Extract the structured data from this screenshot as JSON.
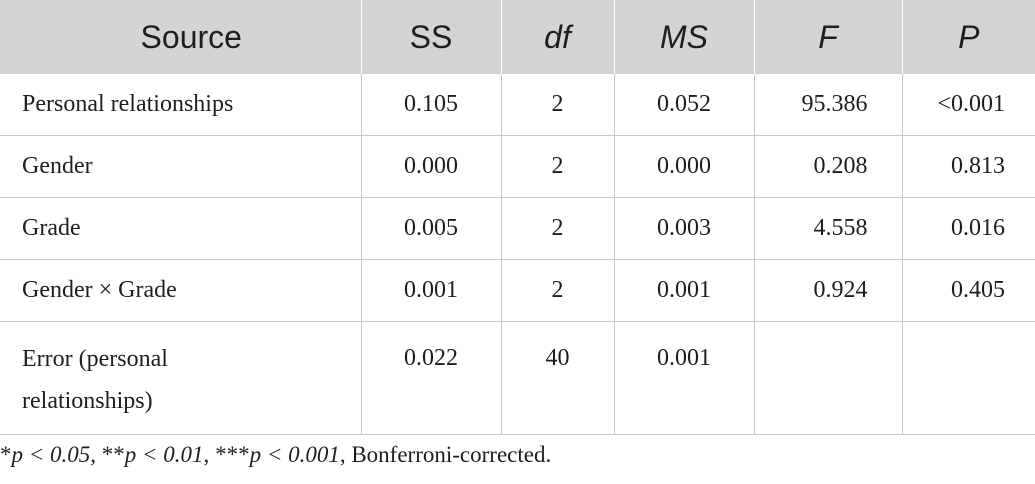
{
  "table": {
    "headers": [
      "Source",
      "SS",
      "df",
      "MS",
      "F",
      "P"
    ],
    "rows": [
      [
        "Personal relationships",
        "0.105",
        "2",
        "0.052",
        "95.386",
        "<0.001"
      ],
      [
        "Gender",
        "0.000",
        "2",
        "0.000",
        "0.208",
        "0.813"
      ],
      [
        "Grade",
        "0.005",
        "2",
        "0.003",
        "4.558",
        "0.016"
      ],
      [
        "Gender × Grade",
        "0.001",
        "2",
        "0.001",
        "0.924",
        "0.405"
      ],
      [
        "Error (personal relationships)",
        "0.022",
        "40",
        "0.001",
        "",
        ""
      ]
    ]
  },
  "footnote": {
    "star": "*",
    "part1": "p < 0.05, ",
    "stars2": "**",
    "part2": "p < 0.01, ",
    "stars3": "***",
    "part3": "p < 0.001",
    "tail": ", Bonferroni-corrected."
  }
}
